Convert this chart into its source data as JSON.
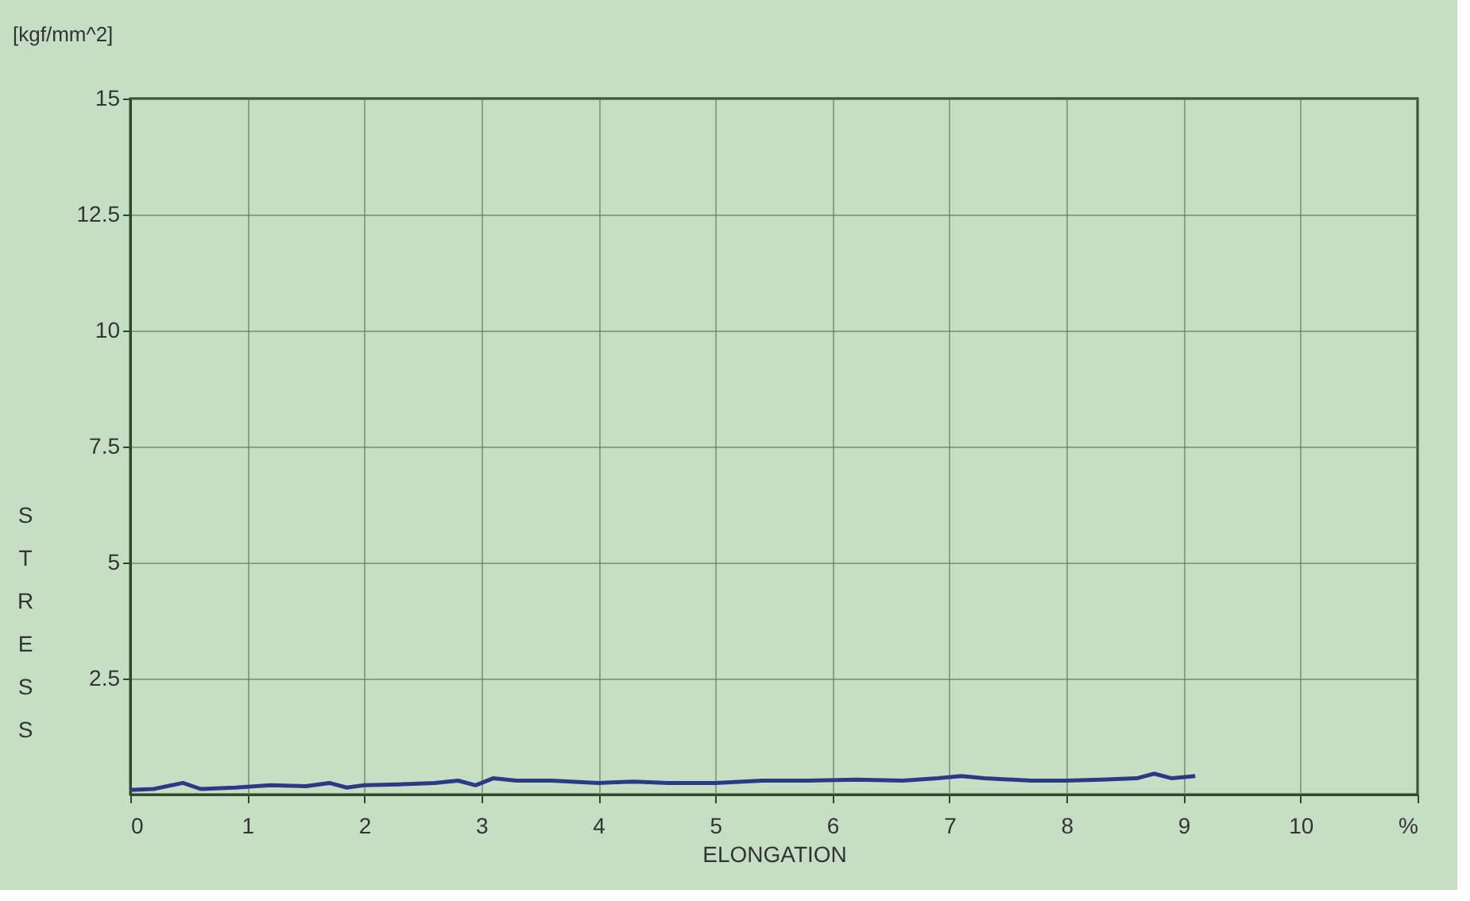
{
  "chart_data": {
    "type": "line",
    "xlabel": "ELONGATION",
    "ylabel": "STRESS",
    "annotations": [
      "[kgf/mm^2]"
    ],
    "x": [
      0,
      0.2,
      0.45,
      0.6,
      0.9,
      1.2,
      1.5,
      1.7,
      1.85,
      2.0,
      2.3,
      2.6,
      2.8,
      2.95,
      3.1,
      3.3,
      3.6,
      4.0,
      4.3,
      4.6,
      5.0,
      5.4,
      5.8,
      6.2,
      6.6,
      6.9,
      7.1,
      7.3,
      7.7,
      8.0,
      8.3,
      8.6,
      8.75,
      8.9,
      9.1
    ],
    "series": [
      {
        "color": "#2b3a86",
        "values": [
          0.1,
          0.12,
          0.25,
          0.12,
          0.15,
          0.2,
          0.18,
          0.25,
          0.15,
          0.2,
          0.22,
          0.25,
          0.3,
          0.2,
          0.35,
          0.3,
          0.3,
          0.25,
          0.28,
          0.25,
          0.25,
          0.3,
          0.3,
          0.32,
          0.3,
          0.35,
          0.4,
          0.35,
          0.3,
          0.3,
          0.32,
          0.35,
          0.45,
          0.35,
          0.4
        ]
      }
    ],
    "xlim": [
      0,
      11
    ],
    "xticks": [
      0,
      1,
      2,
      3,
      4,
      5,
      6,
      7,
      8,
      9,
      10,
      {
        "value": 11,
        "label": "%"
      }
    ],
    "ylim": [
      0,
      15
    ],
    "yticks": [
      2.5,
      5,
      7.5,
      10,
      12.5,
      15
    ],
    "grid": true,
    "marker": "none",
    "line_style": "solid"
  }
}
